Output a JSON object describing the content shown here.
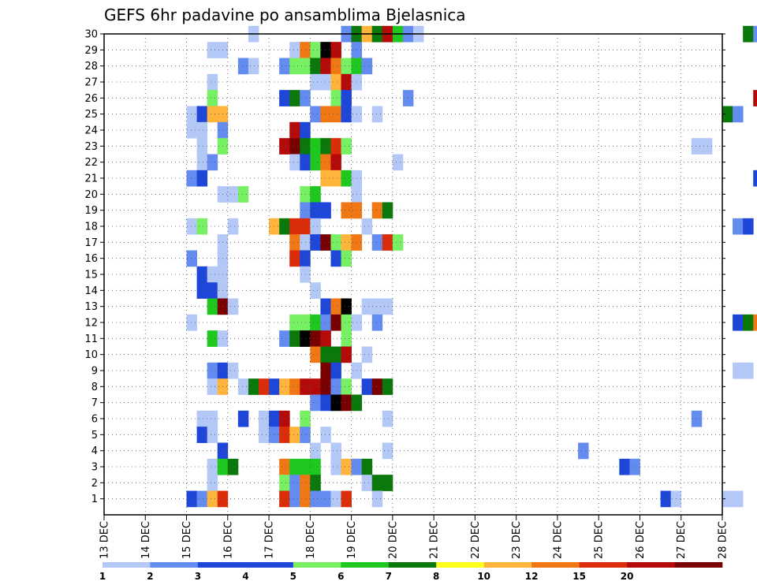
{
  "chart_data": {
    "type": "heatmap",
    "title": "GEFS 6hr padavine po ansamblima Bjelasnica",
    "x_tick_labels": [
      "13 DEC",
      "14 DEC",
      "15 DEC",
      "16 DEC",
      "17 DEC",
      "18 DEC",
      "19 DEC",
      "20 DEC",
      "21 DEC",
      "22 DEC",
      "23 DEC",
      "24 DEC",
      "25 DEC",
      "26 DEC",
      "27 DEC",
      "28 DEC"
    ],
    "y_tick_labels": [
      "1",
      "2",
      "3",
      "4",
      "5",
      "6",
      "7",
      "8",
      "9",
      "10",
      "11",
      "12",
      "13",
      "14",
      "15",
      "16",
      "17",
      "18",
      "19",
      "20",
      "21",
      "22",
      "23",
      "24",
      "25",
      "26",
      "27",
      "28",
      "29",
      "30"
    ],
    "y_range": [
      0,
      30
    ],
    "grid": true,
    "time_step_hours": 6,
    "colorbar": {
      "thresholds": [
        1,
        2,
        3,
        4,
        5,
        6,
        7,
        8,
        10,
        12,
        15,
        20
      ],
      "labels": [
        "1",
        "2",
        "3",
        "4",
        "5",
        "6",
        "7",
        "8",
        "10",
        "12",
        "15",
        "20"
      ],
      "colors": [
        "#b4c8f8",
        "#648cf0",
        "#1e46d8",
        "#1e46d8",
        "#78f064",
        "#1ec81e",
        "#0a780a",
        "#ffff1e",
        "#ffb43c",
        "#f07814",
        "#dc2d0a",
        "#b40a0a",
        "#780000"
      ]
    },
    "cells": [
      {
        "member": 30,
        "step": [
          [
            14,
            0
          ],
          [
            23,
            1
          ],
          [
            24,
            6
          ],
          [
            25,
            8
          ],
          [
            26,
            6
          ],
          [
            27,
            11
          ],
          [
            28,
            5
          ],
          [
            29,
            1
          ],
          [
            30,
            0
          ],
          [
            62,
            6
          ],
          [
            63,
            1
          ],
          [
            70,
            4
          ],
          [
            71,
            0
          ]
        ]
      },
      {
        "member": 29,
        "step": [
          [
            10,
            0
          ],
          [
            11,
            0
          ],
          [
            18,
            0
          ],
          [
            19,
            9
          ],
          [
            20,
            4
          ],
          [
            21,
            13
          ],
          [
            22,
            11
          ],
          [
            24,
            1
          ],
          [
            67,
            0
          ],
          [
            68,
            1
          ]
        ]
      },
      {
        "member": 28,
        "step": [
          [
            13,
            1
          ],
          [
            14,
            0
          ],
          [
            17,
            1
          ],
          [
            18,
            4
          ],
          [
            19,
            4
          ],
          [
            20,
            6
          ],
          [
            21,
            11
          ],
          [
            22,
            9
          ],
          [
            23,
            4
          ],
          [
            24,
            5
          ],
          [
            25,
            1
          ]
        ]
      },
      {
        "member": 27,
        "step": [
          [
            10,
            0
          ],
          [
            20,
            0
          ],
          [
            21,
            0
          ],
          [
            22,
            8
          ],
          [
            23,
            11
          ],
          [
            24,
            0
          ]
        ]
      },
      {
        "member": 26,
        "step": [
          [
            10,
            4
          ],
          [
            17,
            2
          ],
          [
            18,
            6
          ],
          [
            19,
            1
          ],
          [
            22,
            4
          ],
          [
            23,
            2
          ],
          [
            29,
            1
          ],
          [
            63,
            11
          ],
          [
            64,
            10
          ],
          [
            65,
            2
          ],
          [
            72,
            0
          ],
          [
            73,
            6
          ],
          [
            75,
            0
          ]
        ]
      },
      {
        "member": 25,
        "step": [
          [
            8,
            0
          ],
          [
            9,
            2
          ],
          [
            10,
            8
          ],
          [
            11,
            8
          ],
          [
            20,
            1
          ],
          [
            21,
            9
          ],
          [
            22,
            9
          ],
          [
            23,
            2
          ],
          [
            24,
            0
          ],
          [
            26,
            0
          ],
          [
            60,
            6
          ],
          [
            61,
            1
          ],
          [
            73,
            2
          ],
          [
            74,
            0
          ],
          [
            75,
            1
          ]
        ]
      },
      {
        "member": 24,
        "step": [
          [
            8,
            0
          ],
          [
            9,
            0
          ],
          [
            11,
            1
          ],
          [
            18,
            11
          ],
          [
            19,
            2
          ]
        ]
      },
      {
        "member": 23,
        "step": [
          [
            9,
            0
          ],
          [
            11,
            4
          ],
          [
            17,
            11
          ],
          [
            18,
            12
          ],
          [
            19,
            6
          ],
          [
            20,
            5
          ],
          [
            21,
            6
          ],
          [
            22,
            10
          ],
          [
            23,
            4
          ],
          [
            57,
            0
          ],
          [
            58,
            0
          ],
          [
            74,
            0
          ]
        ]
      },
      {
        "member": 22,
        "step": [
          [
            9,
            0
          ],
          [
            10,
            1
          ],
          [
            18,
            0
          ],
          [
            19,
            2
          ],
          [
            20,
            5
          ],
          [
            21,
            9
          ],
          [
            22,
            11
          ],
          [
            28,
            0
          ]
        ]
      },
      {
        "member": 21,
        "step": [
          [
            8,
            1
          ],
          [
            9,
            2
          ],
          [
            21,
            8
          ],
          [
            22,
            8
          ],
          [
            23,
            5
          ],
          [
            24,
            0
          ],
          [
            63,
            2
          ],
          [
            64,
            1
          ],
          [
            65,
            1
          ],
          [
            72,
            1
          ],
          [
            73,
            1
          ],
          [
            74,
            2
          ],
          [
            75,
            8
          ]
        ]
      },
      {
        "member": 20,
        "step": [
          [
            11,
            0
          ],
          [
            12,
            0
          ],
          [
            13,
            4
          ],
          [
            19,
            4
          ],
          [
            20,
            5
          ],
          [
            24,
            0
          ],
          [
            68,
            1
          ],
          [
            69,
            2
          ],
          [
            70,
            10
          ],
          [
            71,
            2
          ],
          [
            72,
            0
          ],
          [
            73,
            1
          ],
          [
            74,
            2
          ],
          [
            75,
            2
          ]
        ]
      },
      {
        "member": 19,
        "step": [
          [
            19,
            1
          ],
          [
            20,
            2
          ],
          [
            21,
            2
          ],
          [
            23,
            9
          ],
          [
            24,
            9
          ],
          [
            26,
            9
          ],
          [
            27,
            6
          ]
        ]
      },
      {
        "member": 18,
        "step": [
          [
            8,
            0
          ],
          [
            9,
            4
          ],
          [
            12,
            0
          ],
          [
            16,
            8
          ],
          [
            17,
            6
          ],
          [
            18,
            10
          ],
          [
            19,
            10
          ],
          [
            20,
            0
          ],
          [
            25,
            0
          ],
          [
            61,
            1
          ],
          [
            62,
            2
          ]
        ]
      },
      {
        "member": 17,
        "step": [
          [
            11,
            0
          ],
          [
            18,
            9
          ],
          [
            19,
            0
          ],
          [
            20,
            2
          ],
          [
            21,
            12
          ],
          [
            22,
            4
          ],
          [
            23,
            8
          ],
          [
            24,
            9
          ],
          [
            26,
            1
          ],
          [
            27,
            10
          ],
          [
            28,
            4
          ]
        ]
      },
      {
        "member": 16,
        "step": [
          [
            8,
            1
          ],
          [
            11,
            0
          ],
          [
            18,
            10
          ],
          [
            19,
            2
          ],
          [
            22,
            2
          ],
          [
            23,
            4
          ],
          [
            69,
            0
          ],
          [
            72,
            2
          ],
          [
            73,
            11
          ]
        ]
      },
      {
        "member": 15,
        "step": [
          [
            9,
            2
          ],
          [
            10,
            0
          ],
          [
            11,
            0
          ],
          [
            19,
            0
          ]
        ]
      },
      {
        "member": 14,
        "step": [
          [
            9,
            2
          ],
          [
            10,
            2
          ],
          [
            11,
            0
          ],
          [
            20,
            0
          ]
        ]
      },
      {
        "member": 13,
        "step": [
          [
            10,
            5
          ],
          [
            11,
            12
          ],
          [
            12,
            0
          ],
          [
            21,
            2
          ],
          [
            22,
            9
          ],
          [
            23,
            13
          ],
          [
            25,
            0
          ],
          [
            26,
            0
          ],
          [
            27,
            0
          ],
          [
            72,
            12
          ],
          [
            73,
            10
          ],
          [
            74,
            0
          ]
        ]
      },
      {
        "member": 12,
        "step": [
          [
            8,
            0
          ],
          [
            18,
            4
          ],
          [
            19,
            4
          ],
          [
            20,
            5
          ],
          [
            21,
            1
          ],
          [
            22,
            12
          ],
          [
            23,
            4
          ],
          [
            24,
            0
          ],
          [
            26,
            1
          ],
          [
            61,
            2
          ],
          [
            62,
            6
          ],
          [
            63,
            9
          ],
          [
            64,
            1
          ],
          [
            65,
            2
          ]
        ]
      },
      {
        "member": 11,
        "step": [
          [
            10,
            5
          ],
          [
            11,
            0
          ],
          [
            17,
            1
          ],
          [
            18,
            6
          ],
          [
            19,
            13
          ],
          [
            20,
            12
          ],
          [
            21,
            11
          ],
          [
            23,
            4
          ]
        ]
      },
      {
        "member": 10,
        "step": [
          [
            20,
            9
          ],
          [
            21,
            6
          ],
          [
            22,
            6
          ],
          [
            23,
            11
          ],
          [
            25,
            0
          ]
        ]
      },
      {
        "member": 9,
        "step": [
          [
            10,
            1
          ],
          [
            11,
            2
          ],
          [
            12,
            0
          ],
          [
            21,
            12
          ],
          [
            22,
            2
          ],
          [
            24,
            0
          ],
          [
            61,
            0
          ],
          [
            62,
            0
          ]
        ]
      },
      {
        "member": 8,
        "step": [
          [
            10,
            0
          ],
          [
            11,
            8
          ],
          [
            13,
            0
          ],
          [
            14,
            6
          ],
          [
            15,
            10
          ],
          [
            16,
            2
          ],
          [
            17,
            8
          ],
          [
            18,
            9
          ],
          [
            19,
            11
          ],
          [
            20,
            11
          ],
          [
            21,
            12
          ],
          [
            22,
            1
          ],
          [
            23,
            4
          ],
          [
            25,
            2
          ],
          [
            26,
            12
          ],
          [
            27,
            6
          ],
          [
            72,
            10
          ],
          [
            73,
            13
          ],
          [
            74,
            2
          ]
        ]
      },
      {
        "member": 7,
        "step": [
          [
            20,
            1
          ],
          [
            21,
            2
          ],
          [
            22,
            13
          ],
          [
            23,
            12
          ],
          [
            24,
            6
          ]
        ]
      },
      {
        "member": 6,
        "step": [
          [
            9,
            0
          ],
          [
            10,
            0
          ],
          [
            13,
            2
          ],
          [
            15,
            0
          ],
          [
            16,
            2
          ],
          [
            17,
            11
          ],
          [
            19,
            4
          ],
          [
            27,
            0
          ],
          [
            57,
            1
          ]
        ]
      },
      {
        "member": 5,
        "step": [
          [
            9,
            2
          ],
          [
            10,
            0
          ],
          [
            15,
            0
          ],
          [
            16,
            1
          ],
          [
            17,
            10
          ],
          [
            18,
            8
          ],
          [
            19,
            1
          ],
          [
            21,
            0
          ],
          [
            64,
            1
          ]
        ]
      },
      {
        "member": 4,
        "step": [
          [
            11,
            2
          ],
          [
            20,
            0
          ],
          [
            22,
            0
          ],
          [
            27,
            0
          ],
          [
            46,
            1
          ]
        ]
      },
      {
        "member": 3,
        "step": [
          [
            10,
            0
          ],
          [
            11,
            5
          ],
          [
            12,
            6
          ],
          [
            17,
            9
          ],
          [
            18,
            5
          ],
          [
            19,
            5
          ],
          [
            20,
            5
          ],
          [
            22,
            0
          ],
          [
            23,
            8
          ],
          [
            24,
            1
          ],
          [
            25,
            6
          ],
          [
            50,
            2
          ],
          [
            51,
            1
          ]
        ]
      },
      {
        "member": 2,
        "step": [
          [
            10,
            0
          ],
          [
            17,
            4
          ],
          [
            18,
            1
          ],
          [
            19,
            9
          ],
          [
            20,
            6
          ],
          [
            25,
            0
          ],
          [
            26,
            6
          ],
          [
            27,
            6
          ]
        ]
      },
      {
        "member": 1,
        "step": [
          [
            8,
            2
          ],
          [
            9,
            1
          ],
          [
            10,
            8
          ],
          [
            11,
            10
          ],
          [
            17,
            10
          ],
          [
            18,
            1
          ],
          [
            19,
            9
          ],
          [
            20,
            1
          ],
          [
            21,
            1
          ],
          [
            22,
            0
          ],
          [
            23,
            10
          ],
          [
            26,
            0
          ],
          [
            54,
            2
          ],
          [
            55,
            0
          ],
          [
            60,
            0
          ],
          [
            61,
            0
          ]
        ]
      }
    ]
  }
}
